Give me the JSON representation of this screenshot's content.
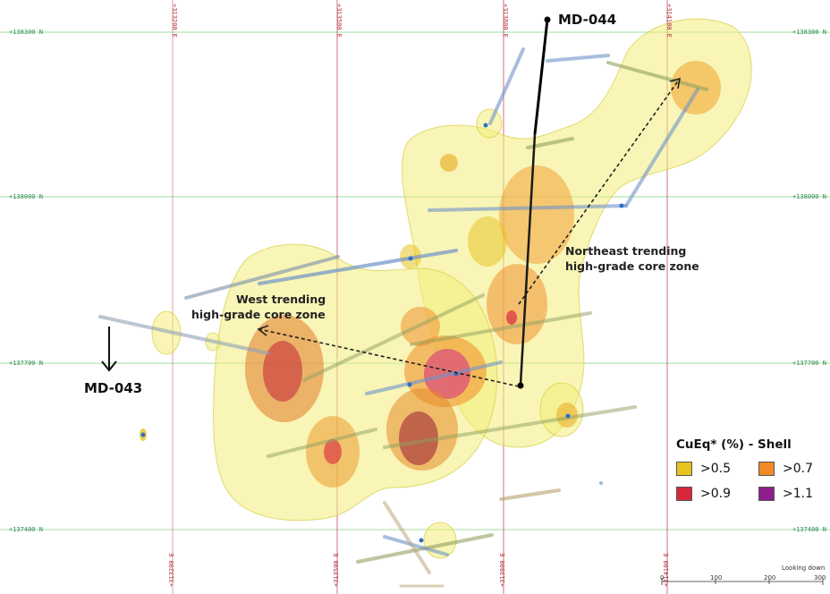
{
  "colors": {
    "background": "#ffffff",
    "northing_grid": "#7fd37f",
    "easting_grid": "#c0505a",
    "northing_label": "#2e8b57",
    "easting_label": "#b03040",
    "outer_shell": "#f4f08c",
    "drill_trace": "#6f93c8",
    "drill_hole_black": "#000000"
  },
  "grid": {
    "northings": [
      {
        "label_left": "+138300 N",
        "label_right": "+138300 N"
      },
      {
        "label_left": "+138000 N",
        "label_right": "+138000 N"
      },
      {
        "label_left": "+137700 N",
        "label_right": "+137700 N"
      },
      {
        "label_left": "+137400 N",
        "label_right": "+137400 N"
      }
    ],
    "eastings": [
      {
        "label_top": "+313200 E",
        "label_bottom": "+313200 E"
      },
      {
        "label_top": "+313500 E",
        "label_bottom": "+313500 E"
      },
      {
        "label_top": "+313800 E",
        "label_bottom": "+313800 E"
      },
      {
        "label_top": "+314100 E",
        "label_bottom": "+314100 E"
      }
    ]
  },
  "drill_holes": {
    "md044": "MD-044",
    "md043": "MD-043"
  },
  "zones": {
    "northeast_line1": "Northeast trending",
    "northeast_line2": "high-grade core zone",
    "west_line1": "West trending",
    "west_line2": "high-grade core zone"
  },
  "legend": {
    "title": "CuEq* (%) - Shell",
    "items": [
      {
        "label": ">0.5",
        "color": "#e8c21e"
      },
      {
        "label": ">0.7",
        "color": "#f08a24"
      },
      {
        "label": ">0.9",
        "color": "#d8283c"
      },
      {
        "label": ">1.1",
        "color": "#8e1e8c"
      }
    ]
  },
  "view": {
    "orientation": "Looking down"
  },
  "scale_bar": {
    "ticks": [
      "0",
      "100",
      "200",
      "300"
    ]
  }
}
